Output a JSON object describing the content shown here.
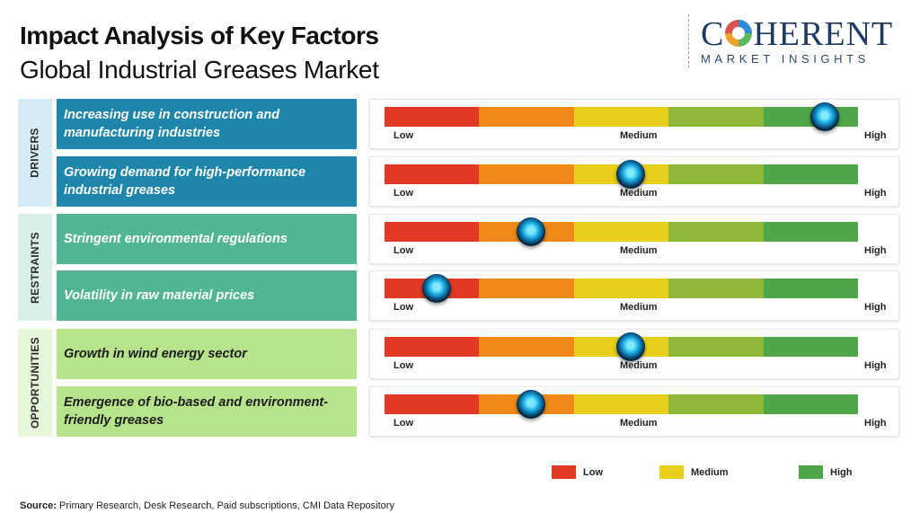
{
  "title": "Impact Analysis of Key Factors",
  "subtitle": "Global Industrial Greases Market",
  "logo": {
    "name_pre": "C",
    "name_post": "HERENT",
    "tagline": "MARKET INSIGHTS"
  },
  "scale_colors": [
    "#e03a24",
    "#ef8a1a",
    "#e8cf1c",
    "#8fb83a",
    "#4fa547"
  ],
  "chart_data": {
    "type": "table",
    "scale": {
      "labels": [
        "Low",
        "Medium",
        "High"
      ],
      "min": 0,
      "max": 1
    },
    "groups": [
      {
        "label": "DRIVERS",
        "color": "#1f86ab",
        "text_color": "#ffffff",
        "bg": "#d6ecf4",
        "factors": [
          {
            "text": "Increasing use in construction and manufacturing industries",
            "impact": 0.93
          },
          {
            "text": "Growing demand for high-performance industrial greases",
            "impact": 0.52
          }
        ]
      },
      {
        "label": "RESTRAINTS",
        "color": "#52b596",
        "text_color": "#ffffff",
        "bg": "#d9f0e6",
        "factors": [
          {
            "text": "Stringent environmental regulations",
            "impact": 0.31
          },
          {
            "text": "Volatility in raw material prices",
            "impact": 0.11
          }
        ]
      },
      {
        "label": "OPPORTUNITIES",
        "color": "#b6e38c",
        "text_color": "#1c1c1c",
        "bg": "#e6f6d8",
        "factors": [
          {
            "text": "Growth in wind energy sector",
            "impact": 0.52
          },
          {
            "text": "Emergence of bio-based and environment-friendly greases",
            "impact": 0.31
          }
        ]
      }
    ],
    "legend": [
      {
        "label": "Low",
        "color": "#e03a24"
      },
      {
        "label": "Medium",
        "color": "#e8cf1c"
      },
      {
        "label": "High",
        "color": "#4fa547"
      }
    ]
  },
  "source": {
    "prefix": "Source:",
    "text": "Primary Research, Desk Research, Paid subscriptions, CMI Data Repository"
  }
}
